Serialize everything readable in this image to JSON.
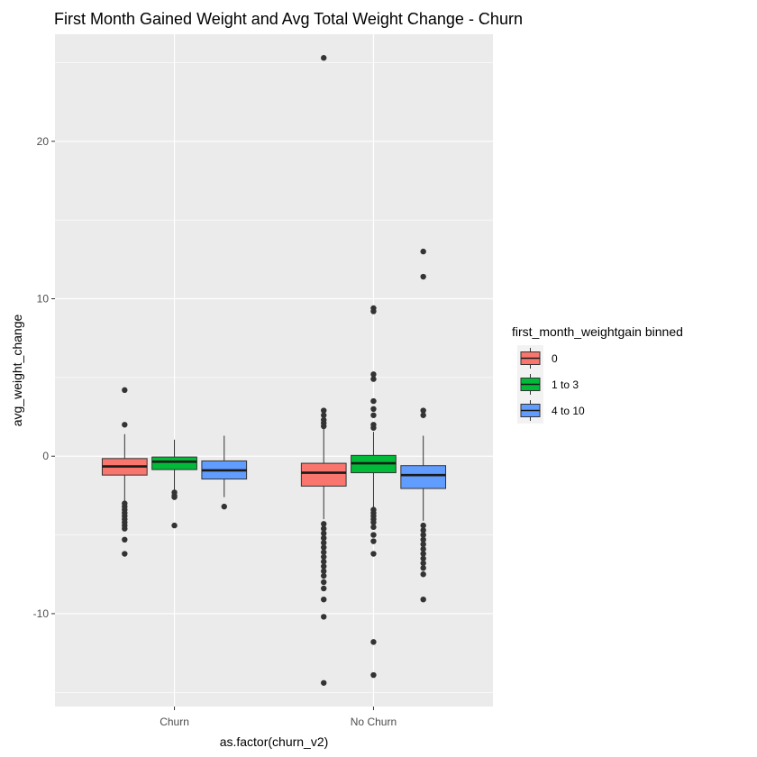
{
  "chart_data": {
    "type": "box",
    "title": "First Month Gained Weight and Avg Total Weight Change - Churn",
    "xlabel": "as.factor(churn_v2)",
    "ylabel": "avg_weight_change",
    "ylim": [
      -15.9,
      26.8
    ],
    "y_ticks": [
      -10,
      0,
      10,
      20
    ],
    "y_tick_labels": [
      "-10",
      "0",
      "10",
      "20"
    ],
    "categories": [
      "Churn",
      "No Churn"
    ],
    "legend": {
      "title": "first_month_weightgain binned",
      "position": "right",
      "entries": [
        "0",
        "1 to 3",
        "4 to 10"
      ]
    },
    "colors": {
      "panel": "#EBEBEB",
      "grid": "#FFFFFF",
      "box_outline": "#333333",
      "point": "#333333"
    },
    "series": [
      {
        "name": "0",
        "color": "#F8766D",
        "boxes": [
          {
            "category": "Churn",
            "whisker_low": -2.9,
            "q1": -1.2,
            "median": -0.65,
            "q3": -0.15,
            "whisker_high": 1.4,
            "outliers": [
              4.2,
              2.0,
              -3.0,
              -3.2,
              -3.4,
              -3.6,
              -3.8,
              -4.0,
              -4.2,
              -4.4,
              -4.6,
              -5.3,
              -6.2
            ]
          },
          {
            "category": "No Churn",
            "whisker_low": -4.0,
            "q1": -1.9,
            "median": -1.05,
            "q3": -0.45,
            "whisker_high": 1.75,
            "outliers": [
              25.3,
              2.9,
              2.6,
              2.3,
              2.1,
              1.9,
              -4.3,
              -4.6,
              -4.9,
              -5.2,
              -5.5,
              -5.8,
              -6.1,
              -6.4,
              -6.7,
              -7.0,
              -7.3,
              -7.6,
              -8.0,
              -8.4,
              -9.1,
              -10.2,
              -14.4
            ]
          }
        ]
      },
      {
        "name": "1 to 3",
        "color": "#00BA38",
        "boxes": [
          {
            "category": "Churn",
            "whisker_low": -2.2,
            "q1": -0.85,
            "median": -0.35,
            "q3": -0.05,
            "whisker_high": 1.05,
            "outliers": [
              -2.3,
              -2.5,
              -2.6,
              -4.4
            ]
          },
          {
            "category": "No Churn",
            "whisker_low": -3.3,
            "q1": -1.05,
            "median": -0.45,
            "q3": 0.05,
            "whisker_high": 1.55,
            "outliers": [
              9.4,
              9.2,
              5.2,
              4.9,
              3.5,
              3.0,
              2.6,
              2.0,
              1.8,
              -3.4,
              -3.6,
              -3.8,
              -4.0,
              -4.2,
              -4.5,
              -5.0,
              -5.4,
              -6.2,
              -11.8,
              -13.9
            ]
          }
        ]
      },
      {
        "name": "4 to 10",
        "color": "#619CFF",
        "boxes": [
          {
            "category": "Churn",
            "whisker_low": -2.6,
            "q1": -1.45,
            "median": -0.9,
            "q3": -0.3,
            "whisker_high": 1.3,
            "outliers": [
              -3.2
            ]
          },
          {
            "category": "No Churn",
            "whisker_low": -4.1,
            "q1": -2.05,
            "median": -1.2,
            "q3": -0.6,
            "whisker_high": 1.3,
            "outliers": [
              13.0,
              11.4,
              2.9,
              2.6,
              -4.4,
              -4.7,
              -5.0,
              -5.3,
              -5.6,
              -5.9,
              -6.2,
              -6.5,
              -6.8,
              -7.1,
              -7.5,
              -9.1
            ]
          }
        ]
      }
    ]
  }
}
